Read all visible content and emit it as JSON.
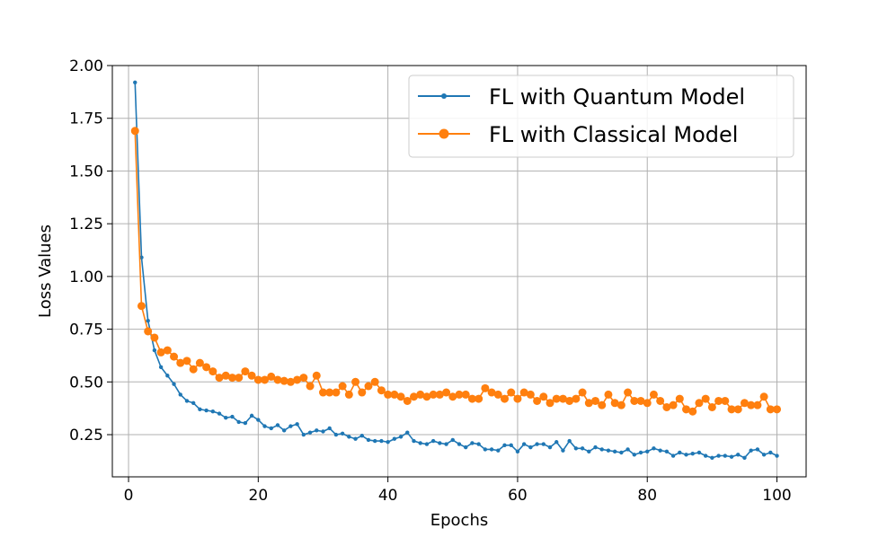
{
  "chart_data": {
    "type": "line",
    "title": "",
    "xlabel": "Epochs",
    "ylabel": "Loss Values",
    "xlim": [
      -2.5,
      104.5
    ],
    "ylim": [
      0.05,
      2.0
    ],
    "xticks": [
      0,
      20,
      40,
      60,
      80,
      100
    ],
    "yticks": [
      0.25,
      0.5,
      0.75,
      1.0,
      1.25,
      1.5,
      1.75,
      2.0
    ],
    "xtick_labels": [
      "0",
      "20",
      "40",
      "60",
      "80",
      "100"
    ],
    "ytick_labels": [
      "0.25",
      "0.50",
      "0.75",
      "1.00",
      "1.25",
      "1.50",
      "1.75",
      "2.00"
    ],
    "grid": true,
    "legend_position": "top-right",
    "x": [
      1,
      2,
      3,
      4,
      5,
      6,
      7,
      8,
      9,
      10,
      11,
      12,
      13,
      14,
      15,
      16,
      17,
      18,
      19,
      20,
      21,
      22,
      23,
      24,
      25,
      26,
      27,
      28,
      29,
      30,
      31,
      32,
      33,
      34,
      35,
      36,
      37,
      38,
      39,
      40,
      41,
      42,
      43,
      44,
      45,
      46,
      47,
      48,
      49,
      50,
      51,
      52,
      53,
      54,
      55,
      56,
      57,
      58,
      59,
      60,
      61,
      62,
      63,
      64,
      65,
      66,
      67,
      68,
      69,
      70,
      71,
      72,
      73,
      74,
      75,
      76,
      77,
      78,
      79,
      80,
      81,
      82,
      83,
      84,
      85,
      86,
      87,
      88,
      89,
      90,
      91,
      92,
      93,
      94,
      95,
      96,
      97,
      98,
      99,
      100
    ],
    "series": [
      {
        "name": "FL with Quantum Model",
        "color": "#1f77b4",
        "marker": "small-dot",
        "values": [
          1.92,
          1.09,
          0.79,
          0.65,
          0.57,
          0.53,
          0.49,
          0.44,
          0.41,
          0.4,
          0.37,
          0.365,
          0.36,
          0.35,
          0.33,
          0.335,
          0.31,
          0.305,
          0.34,
          0.32,
          0.29,
          0.28,
          0.295,
          0.27,
          0.29,
          0.3,
          0.25,
          0.26,
          0.27,
          0.265,
          0.28,
          0.25,
          0.255,
          0.24,
          0.23,
          0.245,
          0.225,
          0.22,
          0.22,
          0.215,
          0.23,
          0.24,
          0.26,
          0.22,
          0.21,
          0.205,
          0.22,
          0.21,
          0.205,
          0.225,
          0.205,
          0.19,
          0.21,
          0.205,
          0.18,
          0.18,
          0.175,
          0.2,
          0.2,
          0.17,
          0.205,
          0.19,
          0.205,
          0.205,
          0.19,
          0.215,
          0.175,
          0.22,
          0.185,
          0.185,
          0.17,
          0.19,
          0.18,
          0.175,
          0.17,
          0.165,
          0.18,
          0.155,
          0.165,
          0.17,
          0.185,
          0.175,
          0.17,
          0.15,
          0.165,
          0.155,
          0.16,
          0.165,
          0.15,
          0.14,
          0.15,
          0.15,
          0.145,
          0.155,
          0.14,
          0.175,
          0.18,
          0.155,
          0.165,
          0.15
        ]
      },
      {
        "name": "FL with Classical Model",
        "color": "#ff7f0e",
        "marker": "large-dot",
        "values": [
          1.69,
          0.86,
          0.74,
          0.71,
          0.64,
          0.65,
          0.62,
          0.59,
          0.6,
          0.56,
          0.59,
          0.57,
          0.55,
          0.52,
          0.53,
          0.52,
          0.52,
          0.55,
          0.53,
          0.51,
          0.51,
          0.525,
          0.51,
          0.505,
          0.5,
          0.51,
          0.52,
          0.48,
          0.53,
          0.45,
          0.45,
          0.45,
          0.48,
          0.44,
          0.5,
          0.45,
          0.48,
          0.5,
          0.46,
          0.44,
          0.44,
          0.43,
          0.41,
          0.43,
          0.44,
          0.43,
          0.44,
          0.44,
          0.45,
          0.43,
          0.44,
          0.44,
          0.42,
          0.42,
          0.47,
          0.45,
          0.44,
          0.42,
          0.45,
          0.42,
          0.45,
          0.44,
          0.41,
          0.43,
          0.4,
          0.42,
          0.42,
          0.41,
          0.42,
          0.45,
          0.4,
          0.41,
          0.39,
          0.44,
          0.4,
          0.39,
          0.45,
          0.41,
          0.41,
          0.4,
          0.44,
          0.41,
          0.38,
          0.39,
          0.42,
          0.37,
          0.36,
          0.4,
          0.42,
          0.38,
          0.41,
          0.41,
          0.37,
          0.37,
          0.4,
          0.39,
          0.39,
          0.43,
          0.37,
          0.37
        ]
      }
    ]
  }
}
